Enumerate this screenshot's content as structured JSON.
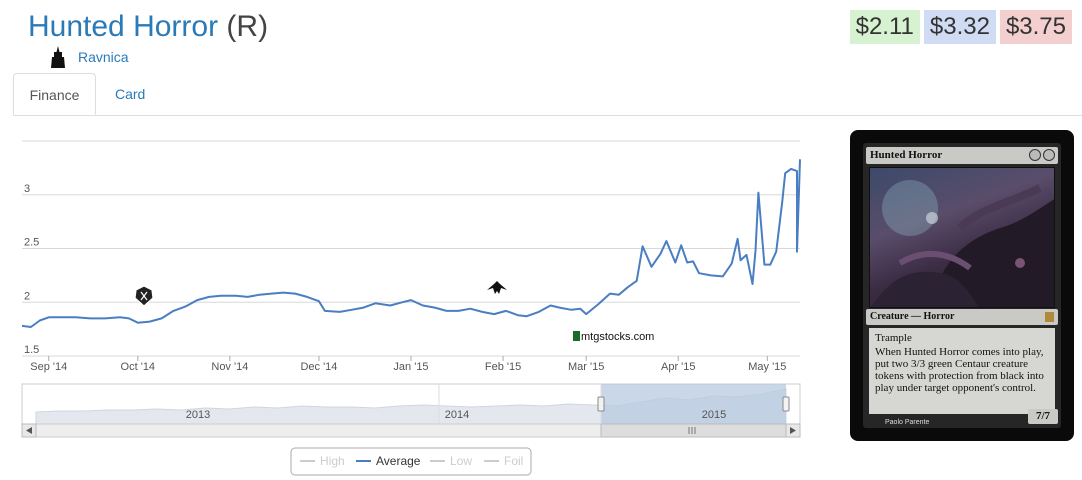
{
  "card": {
    "name": "Hunted Horror",
    "rarity": "(R)",
    "set": "Ravnica",
    "prices": {
      "low": "$2.11",
      "avg": "$3.32",
      "high": "$3.75"
    },
    "image": {
      "name": "Hunted Horror",
      "type": "Creature — Horror",
      "ability_1": "Trample",
      "ability_2": "When Hunted Horror comes into play, put two 3/3 green Centaur creature tokens with protection from black into play under target opponent's control.",
      "artist": "Paolo Parente",
      "pt": "7/7"
    }
  },
  "tabs": [
    {
      "label": "Finance",
      "active": true
    },
    {
      "label": "Card",
      "active": false
    }
  ],
  "colors": {
    "series": "#4a7ec2",
    "navigator_fill": "#b8c9e0",
    "link": "#2a7ab8"
  },
  "icons": {
    "set_symbol": "ravnica-set-icon",
    "event_1": "guild-crest-icon",
    "event_2": "winged-crest-icon",
    "watermark": "mtgstocks-logo-icon"
  },
  "watermark": "mtgstocks.com",
  "chart_data": {
    "type": "line",
    "ylim": [
      1.5,
      3.5
    ],
    "yticks": [
      1.5,
      2,
      2.5,
      3
    ],
    "ytick_labels": [
      "1.5",
      "2",
      "2.5",
      "3"
    ],
    "x_start": "2014-08-23",
    "x_end": "2015-05-12",
    "xticks": [
      {
        "label": "Sep '14",
        "date": "2014-09-01"
      },
      {
        "label": "Oct '14",
        "date": "2014-10-01"
      },
      {
        "label": "Nov '14",
        "date": "2014-11-01"
      },
      {
        "label": "Dec '14",
        "date": "2014-12-01"
      },
      {
        "label": "Jan '15",
        "date": "2015-01-01"
      },
      {
        "label": "Feb '15",
        "date": "2015-02-01"
      },
      {
        "label": "Mar '15",
        "date": "2015-03-01"
      },
      {
        "label": "Apr '15",
        "date": "2015-04-01"
      },
      {
        "label": "May '15",
        "date": "2015-05-01"
      }
    ],
    "series": [
      {
        "name": "Average",
        "points": [
          [
            "2014-08-23",
            1.78
          ],
          [
            "2014-08-26",
            1.77
          ],
          [
            "2014-08-29",
            1.83
          ],
          [
            "2014-09-01",
            1.86
          ],
          [
            "2014-09-05",
            1.86
          ],
          [
            "2014-09-10",
            1.86
          ],
          [
            "2014-09-15",
            1.85
          ],
          [
            "2014-09-20",
            1.85
          ],
          [
            "2014-09-25",
            1.86
          ],
          [
            "2014-09-28",
            1.85
          ],
          [
            "2014-10-01",
            1.81
          ],
          [
            "2014-10-05",
            1.82
          ],
          [
            "2014-10-09",
            1.85
          ],
          [
            "2014-10-13",
            1.92
          ],
          [
            "2014-10-17",
            1.96
          ],
          [
            "2014-10-21",
            2.02
          ],
          [
            "2014-10-25",
            2.05
          ],
          [
            "2014-10-29",
            2.06
          ],
          [
            "2014-11-03",
            2.06
          ],
          [
            "2014-11-07",
            2.05
          ],
          [
            "2014-11-11",
            2.07
          ],
          [
            "2014-11-15",
            2.08
          ],
          [
            "2014-11-19",
            2.09
          ],
          [
            "2014-11-23",
            2.08
          ],
          [
            "2014-11-27",
            2.05
          ],
          [
            "2014-12-01",
            2.01
          ],
          [
            "2014-12-03",
            1.92
          ],
          [
            "2014-12-08",
            1.91
          ],
          [
            "2014-12-12",
            1.93
          ],
          [
            "2014-12-16",
            1.95
          ],
          [
            "2014-12-20",
            1.99
          ],
          [
            "2014-12-25",
            1.97
          ],
          [
            "2014-12-29",
            2.0
          ],
          [
            "2015-01-01",
            2.02
          ],
          [
            "2015-01-05",
            1.97
          ],
          [
            "2015-01-09",
            1.95
          ],
          [
            "2015-01-13",
            1.92
          ],
          [
            "2015-01-17",
            1.92
          ],
          [
            "2015-01-21",
            1.94
          ],
          [
            "2015-01-25",
            1.91
          ],
          [
            "2015-01-29",
            1.89
          ],
          [
            "2015-02-02",
            1.92
          ],
          [
            "2015-02-06",
            1.88
          ],
          [
            "2015-02-09",
            1.87
          ],
          [
            "2015-02-13",
            1.91
          ],
          [
            "2015-02-17",
            1.97
          ],
          [
            "2015-02-20",
            1.95
          ],
          [
            "2015-02-24",
            1.93
          ],
          [
            "2015-02-27",
            1.94
          ],
          [
            "2015-03-01",
            1.89
          ],
          [
            "2015-03-05",
            1.98
          ],
          [
            "2015-03-09",
            2.08
          ],
          [
            "2015-03-12",
            2.07
          ],
          [
            "2015-03-15",
            2.14
          ],
          [
            "2015-03-18",
            2.2
          ],
          [
            "2015-03-20",
            2.52
          ],
          [
            "2015-03-23",
            2.33
          ],
          [
            "2015-03-26",
            2.45
          ],
          [
            "2015-03-28",
            2.57
          ],
          [
            "2015-03-31",
            2.37
          ],
          [
            "2015-04-02",
            2.53
          ],
          [
            "2015-04-04",
            2.37
          ],
          [
            "2015-04-06",
            2.38
          ],
          [
            "2015-04-08",
            2.27
          ],
          [
            "2015-04-12",
            2.25
          ],
          [
            "2015-04-16",
            2.24
          ],
          [
            "2015-04-19",
            2.36
          ],
          [
            "2015-04-21",
            2.59
          ],
          [
            "2015-04-22",
            2.39
          ],
          [
            "2015-04-24",
            2.44
          ],
          [
            "2015-04-26",
            2.17
          ],
          [
            "2015-04-27",
            2.48
          ],
          [
            "2015-04-28",
            3.02
          ],
          [
            "2015-04-30",
            2.35
          ],
          [
            "2015-05-02",
            2.35
          ],
          [
            "2015-05-04",
            2.47
          ],
          [
            "2015-05-06",
            2.93
          ],
          [
            "2015-05-07",
            3.2
          ],
          [
            "2015-05-09",
            3.24
          ],
          [
            "2015-05-11",
            3.22
          ],
          [
            "2015-05-11",
            2.47
          ],
          [
            "2015-05-12",
            3.33
          ]
        ]
      }
    ],
    "navigator": {
      "year_labels": [
        "2013",
        "2014",
        "2015"
      ]
    },
    "legend": {
      "placement": "bottom-center",
      "items": [
        {
          "label": "High",
          "visible": false
        },
        {
          "label": "Average",
          "visible": true
        },
        {
          "label": "Low",
          "visible": false
        },
        {
          "label": "Foil",
          "visible": false
        }
      ]
    },
    "grid": true
  }
}
